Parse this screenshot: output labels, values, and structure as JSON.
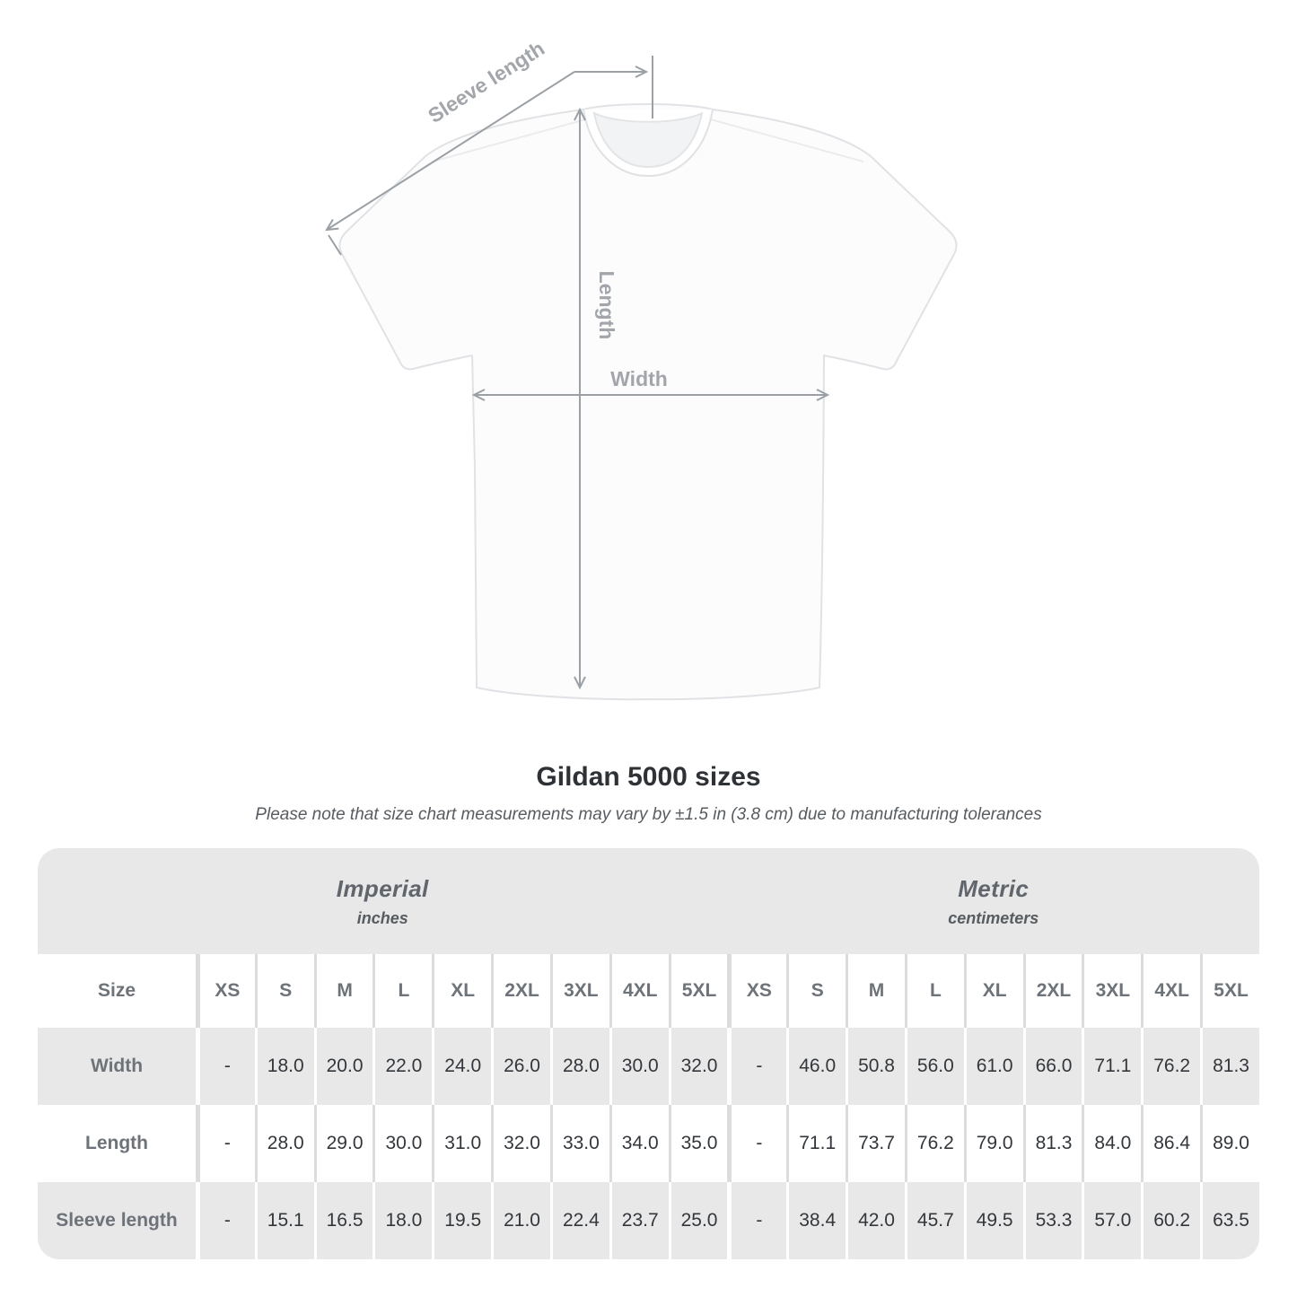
{
  "diagram": {
    "sleeve_label": "Sleeve length",
    "length_label": "Length",
    "width_label": "Width",
    "arrow_color": "#9aa0a5",
    "label_color": "#a2a6ab"
  },
  "chart_data": {
    "type": "table",
    "title": "Gildan 5000 sizes",
    "tolerance_note": "Please note that size chart measurements may vary by ±1.5 in (3.8 cm) due to manufacturing tolerances",
    "corner_label": "Size",
    "groups": [
      {
        "title": "Imperial",
        "unit": "inches",
        "columns": [
          "XS",
          "S",
          "M",
          "L",
          "XL",
          "2XL",
          "3XL",
          "4XL",
          "5XL"
        ]
      },
      {
        "title": "Metric",
        "unit": "centimeters",
        "columns": [
          "XS",
          "S",
          "M",
          "L",
          "XL",
          "2XL",
          "3XL",
          "4XL",
          "5XL"
        ]
      }
    ],
    "rows": [
      {
        "label": "Width",
        "imperial": [
          "-",
          "18.0",
          "20.0",
          "22.0",
          "24.0",
          "26.0",
          "28.0",
          "30.0",
          "32.0"
        ],
        "metric": [
          "-",
          "46.0",
          "50.8",
          "56.0",
          "61.0",
          "66.0",
          "71.1",
          "76.2",
          "81.3"
        ]
      },
      {
        "label": "Length",
        "imperial": [
          "-",
          "28.0",
          "29.0",
          "30.0",
          "31.0",
          "32.0",
          "33.0",
          "34.0",
          "35.0"
        ],
        "metric": [
          "-",
          "71.1",
          "73.7",
          "76.2",
          "79.0",
          "81.3",
          "84.0",
          "86.4",
          "89.0"
        ]
      },
      {
        "label": "Sleeve length",
        "imperial": [
          "-",
          "15.1",
          "16.5",
          "18.0",
          "19.5",
          "21.0",
          "22.4",
          "23.7",
          "25.0"
        ],
        "metric": [
          "-",
          "38.4",
          "42.0",
          "45.7",
          "49.5",
          "53.3",
          "57.0",
          "60.2",
          "63.5"
        ]
      }
    ],
    "colors": {
      "band_gray": "#e8e8e8",
      "header_text": "#6d7379",
      "value_text": "#33373b"
    }
  }
}
